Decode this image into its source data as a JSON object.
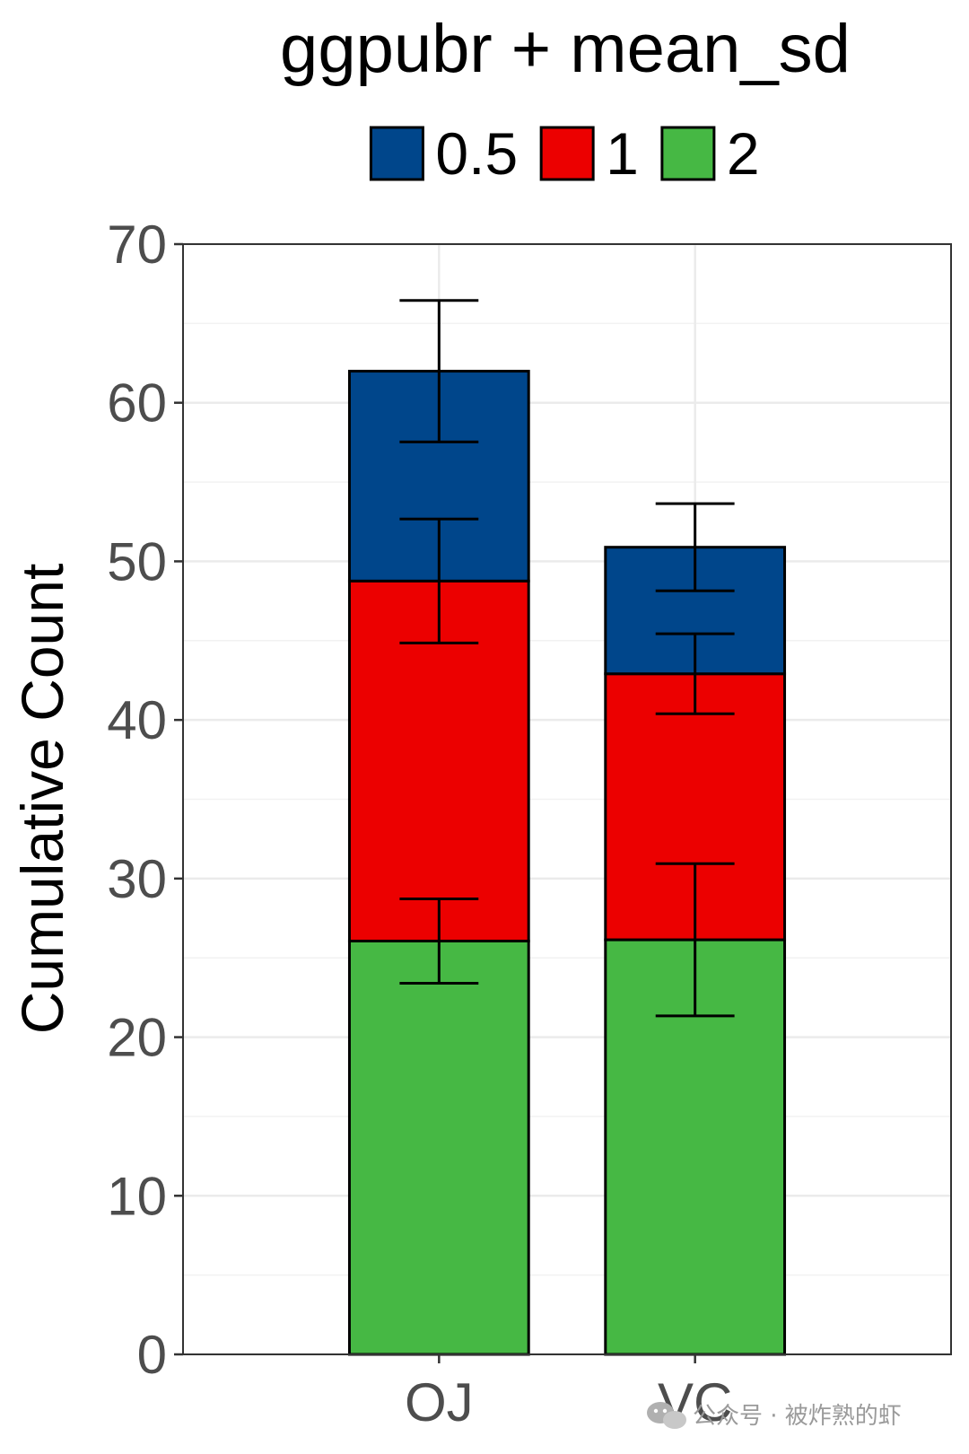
{
  "chart_data": {
    "type": "bar",
    "stacked": true,
    "title": "ggpubr + mean_sd",
    "xlabel": "",
    "ylabel": "Cumulative Count",
    "categories": [
      "OJ",
      "VC"
    ],
    "ylim": [
      0,
      70
    ],
    "yticks": [
      0,
      10,
      20,
      30,
      40,
      50,
      60,
      70
    ],
    "grid": true,
    "legend_position": "top",
    "series": [
      {
        "name": "2",
        "color": "#46b844",
        "values": [
          26.06,
          26.14
        ],
        "error_sd": [
          2.66,
          4.8
        ]
      },
      {
        "name": "1",
        "color": "#ec0000",
        "values": [
          22.7,
          16.77
        ],
        "error_sd": [
          3.91,
          2.52
        ]
      },
      {
        "name": "0.5",
        "color": "#00468b",
        "values": [
          13.23,
          7.98
        ],
        "error_sd": [
          4.46,
          2.75
        ]
      }
    ],
    "legend_order": [
      "0.5",
      "1",
      "2"
    ]
  },
  "watermark": {
    "icon": "wechat-icon",
    "text": "公众号 · 被炸熟的虾"
  }
}
